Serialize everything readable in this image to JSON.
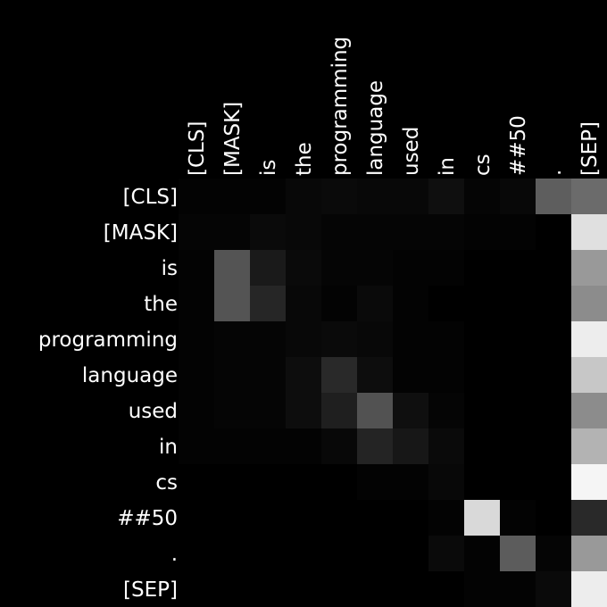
{
  "chart_data": {
    "type": "heatmap",
    "colormap": "grayscale (black = 0, white = 1)",
    "grid": false,
    "legend": "none",
    "x_tokens": [
      "[CLS]",
      "[MASK]",
      "is",
      "the",
      "programming",
      "language",
      "used",
      "in",
      "cs",
      "##50",
      ".",
      "[SEP]"
    ],
    "y_tokens": [
      "[CLS]",
      "[MASK]",
      "is",
      "the",
      "programming",
      "language",
      "used",
      "in",
      "cs",
      "##50",
      ".",
      "[SEP]"
    ],
    "values": [
      [
        0.01,
        0.01,
        0.01,
        0.03,
        0.04,
        0.03,
        0.03,
        0.06,
        0.02,
        0.03,
        0.37,
        0.42
      ],
      [
        0.02,
        0.02,
        0.04,
        0.03,
        0.02,
        0.02,
        0.02,
        0.02,
        0.01,
        0.01,
        0.0,
        0.88
      ],
      [
        0.01,
        0.33,
        0.1,
        0.04,
        0.02,
        0.02,
        0.01,
        0.01,
        0.0,
        0.0,
        0.0,
        0.6
      ],
      [
        0.01,
        0.33,
        0.15,
        0.03,
        0.01,
        0.04,
        0.01,
        0.0,
        0.0,
        0.0,
        0.0,
        0.55
      ],
      [
        0.01,
        0.02,
        0.02,
        0.03,
        0.04,
        0.03,
        0.01,
        0.01,
        0.0,
        0.0,
        0.0,
        0.93
      ],
      [
        0.01,
        0.02,
        0.02,
        0.05,
        0.16,
        0.05,
        0.01,
        0.01,
        0.0,
        0.0,
        0.0,
        0.78
      ],
      [
        0.01,
        0.02,
        0.02,
        0.05,
        0.12,
        0.32,
        0.06,
        0.02,
        0.0,
        0.0,
        0.0,
        0.55
      ],
      [
        0.01,
        0.01,
        0.01,
        0.01,
        0.03,
        0.14,
        0.09,
        0.04,
        0.0,
        0.0,
        0.0,
        0.7
      ],
      [
        0.0,
        0.0,
        0.0,
        0.0,
        0.0,
        0.01,
        0.01,
        0.03,
        0.0,
        0.0,
        0.0,
        0.96
      ],
      [
        0.0,
        0.0,
        0.0,
        0.0,
        0.0,
        0.0,
        0.0,
        0.01,
        0.85,
        0.01,
        0.0,
        0.16
      ],
      [
        0.0,
        0.0,
        0.0,
        0.0,
        0.0,
        0.0,
        0.0,
        0.04,
        0.01,
        0.36,
        0.02,
        0.6
      ],
      [
        0.0,
        0.0,
        0.0,
        0.0,
        0.0,
        0.0,
        0.0,
        0.0,
        0.01,
        0.01,
        0.04,
        0.93
      ]
    ]
  }
}
